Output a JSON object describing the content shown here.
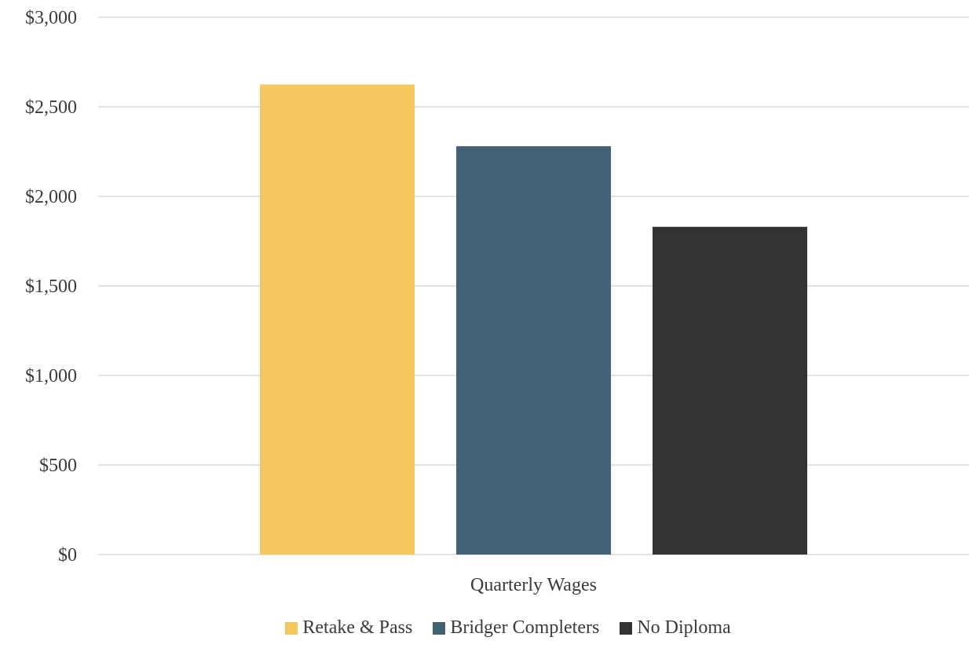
{
  "chart_data": {
    "type": "bar",
    "categories": [
      "Quarterly Wages"
    ],
    "series": [
      {
        "name": "Retake & Pass",
        "values": [
          2625
        ],
        "color": "#F4C75F"
      },
      {
        "name": "Bridger Completers",
        "values": [
          2280
        ],
        "color": "#426175"
      },
      {
        "name": "No Diploma",
        "values": [
          1830
        ],
        "color": "#333333"
      }
    ],
    "title": "",
    "xlabel": "",
    "ylabel": "",
    "ylim": [
      0,
      3000
    ],
    "yticks": [
      0,
      500,
      1000,
      1500,
      2000,
      2500,
      3000
    ],
    "ytick_labels": [
      "$0",
      "$500",
      "$1,000",
      "$1,500",
      "$2,000",
      "$2,500",
      "$3,000"
    ],
    "grid": true,
    "legend_position": "bottom"
  }
}
